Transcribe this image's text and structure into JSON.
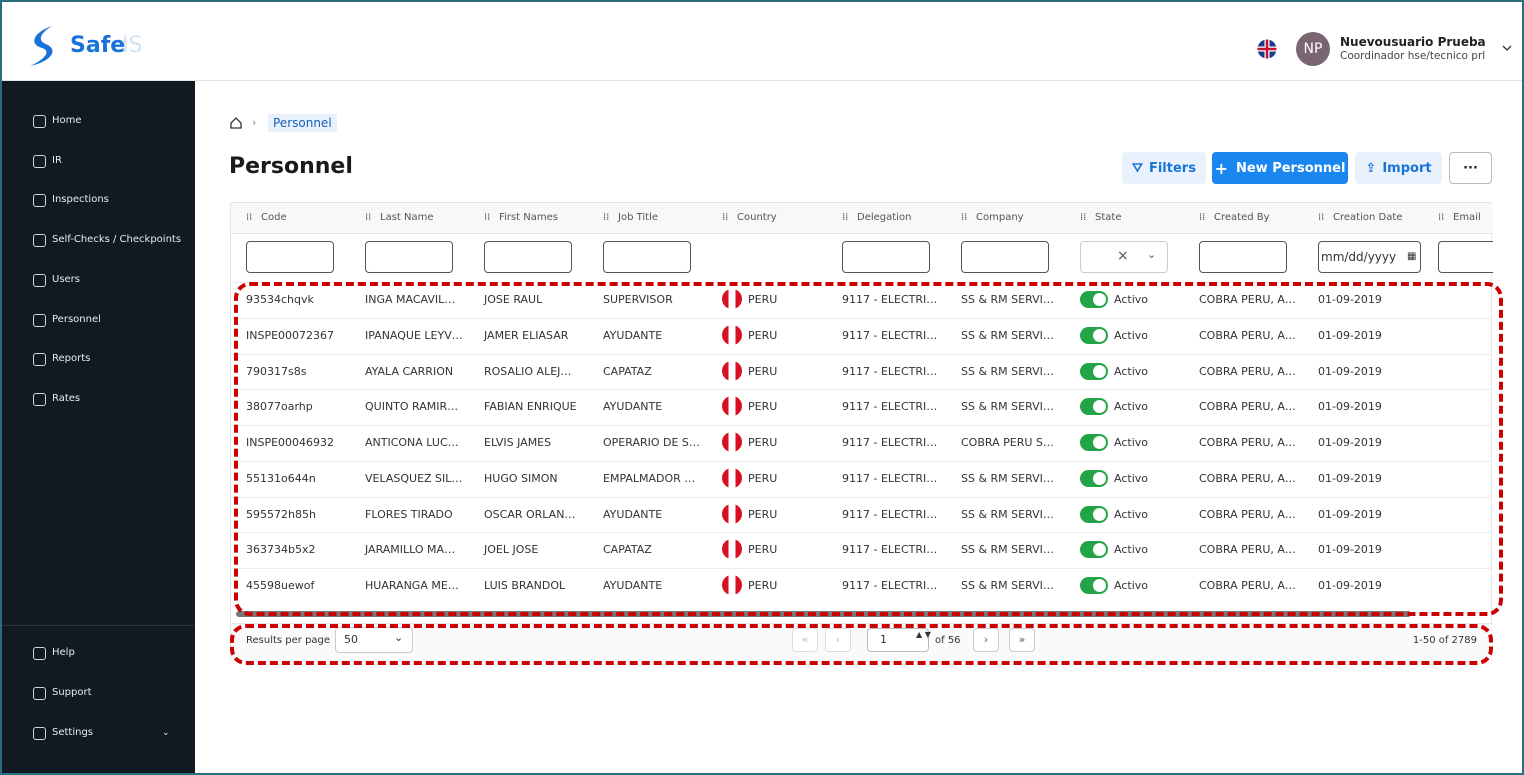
{
  "header": {
    "logo_text": "Safe",
    "logo_suffix": "IS",
    "user_initials": "NP",
    "user_name": "Nuevousuario Prueba",
    "user_role": "Coordinador hse/tecnico prl"
  },
  "sidebar": {
    "items": [
      "Home",
      "IR",
      "Inspections",
      "Self-Checks / Checkpoints",
      "Users",
      "Personnel",
      "Reports",
      "Rates"
    ],
    "bottom_items": [
      "Help",
      "Support",
      "Settings"
    ]
  },
  "breadcrumb": [
    "Personnel"
  ],
  "page_title": "Personnel",
  "actions": [
    "Filters",
    "New Personnel",
    "Import"
  ],
  "table": {
    "columns": [
      "Code",
      "Last Name",
      "First Names",
      "Job Title",
      "Country",
      "Delegation",
      "Company",
      "State",
      "Created By",
      "Creation Date",
      "Email"
    ],
    "date_placeholder": "mm/dd/yyyy",
    "rows": [
      [
        "93534chqvk",
        "INGA MACAVIL…",
        "JOSE RAUL",
        "SUPERVISOR",
        "PERU",
        "9117 - ELECTRI…",
        "SS & RM SERVI…",
        "Activo",
        "COBRA PERU, A…",
        "01-09-2019"
      ],
      [
        "INSPE00072367",
        "IPANAQUE LEYV…",
        "JAMER ELIASAR",
        "AYUDANTE",
        "PERU",
        "9117 - ELECTRI…",
        "SS & RM SERVI…",
        "Activo",
        "COBRA PERU, A…",
        "01-09-2019"
      ],
      [
        "790317s8s",
        "AYALA CARRION",
        "ROSALIO ALEJ…",
        "CAPATAZ",
        "PERU",
        "9117 - ELECTRI…",
        "SS & RM SERVI…",
        "Activo",
        "COBRA PERU, A…",
        "01-09-2019"
      ],
      [
        "38077oarhp",
        "QUINTO RAMIR…",
        "FABIAN ENRIQUE",
        "AYUDANTE",
        "PERU",
        "9117 - ELECTRI…",
        "SS & RM SERVI…",
        "Activo",
        "COBRA PERU, A…",
        "01-09-2019"
      ],
      [
        "INSPE00046932",
        "ANTICONA LUC…",
        "ELVIS JAMES",
        "OPERARIO DE S…",
        "PERU",
        "9117 - ELECTRI…",
        "COBRA PERU S…",
        "Activo",
        "COBRA PERU, A…",
        "01-09-2019"
      ],
      [
        "55131o644n",
        "VELASQUEZ SIL…",
        "HUGO SIMON",
        "EMPALMADOR …",
        "PERU",
        "9117 - ELECTRI…",
        "SS & RM SERVI…",
        "Activo",
        "COBRA PERU, A…",
        "01-09-2019"
      ],
      [
        "595572h85h",
        "FLORES TIRADO",
        "OSCAR ORLAN…",
        "AYUDANTE",
        "PERU",
        "9117 - ELECTRI…",
        "SS & RM SERVI…",
        "Activo",
        "COBRA PERU, A…",
        "01-09-2019"
      ],
      [
        "363734b5x2",
        "JARAMILLO MA…",
        "JOEL JOSE",
        "CAPATAZ",
        "PERU",
        "9117 - ELECTRI…",
        "SS & RM SERVI…",
        "Activo",
        "COBRA PERU, A…",
        "01-09-2019"
      ],
      [
        "45598uewof",
        "HUARANGA ME…",
        "LUIS BRANDOL",
        "AYUDANTE",
        "PERU",
        "9117 - ELECTRI…",
        "SS & RM SERVI…",
        "Activo",
        "COBRA PERU, A…",
        "01-09-2019"
      ]
    ]
  },
  "pagination": {
    "results_label": "Results per page",
    "page_size": "50",
    "current_page": "1",
    "of_pages": "of 56",
    "range": "1-50 of 2789"
  }
}
